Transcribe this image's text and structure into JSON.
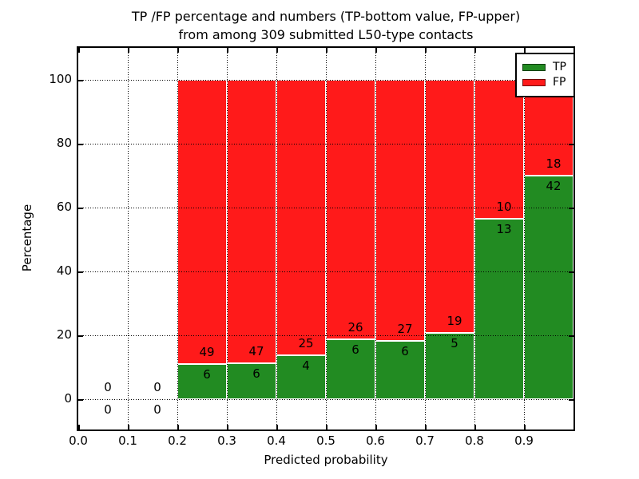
{
  "chart_data": {
    "type": "bar",
    "stacked": true,
    "title_line1": "TP /FP percentage and numbers (TP-bottom value, FP-upper)",
    "title_line2": "from among 309 submitted L50-type contacts",
    "xlabel": "Predicted probability",
    "ylabel": "Percentage",
    "total_contacts": 309,
    "xlim": [
      0.0,
      1.0
    ],
    "ylim": [
      -9.5,
      110
    ],
    "x_ticks": [
      "0.0",
      "0.1",
      "0.2",
      "0.3",
      "0.4",
      "0.5",
      "0.6",
      "0.7",
      "0.8",
      "0.9"
    ],
    "y_ticks": [
      "0",
      "20",
      "40",
      "60",
      "80",
      "100"
    ],
    "grid_style": "dotted",
    "colors": {
      "tp": "#228b22",
      "fp": "#ff1a1a",
      "bar_edge": "#ffffff"
    },
    "legend": {
      "position": "upper right",
      "entries": [
        {
          "label": "TP",
          "color": "#228b22"
        },
        {
          "label": "FP",
          "color": "#ff1a1a"
        }
      ]
    },
    "bins": [
      {
        "x_start": 0.0,
        "x_end": 0.1,
        "tp_count": 0,
        "fp_count": 0,
        "tp_pct": 0,
        "fp_pct": 0,
        "bar": false
      },
      {
        "x_start": 0.1,
        "x_end": 0.2,
        "tp_count": 0,
        "fp_count": 0,
        "tp_pct": 0,
        "fp_pct": 0,
        "bar": false
      },
      {
        "x_start": 0.2,
        "x_end": 0.3,
        "tp_count": 6,
        "fp_count": 49,
        "tp_pct": 10.91,
        "fp_pct": 89.09,
        "bar": true
      },
      {
        "x_start": 0.3,
        "x_end": 0.4,
        "tp_count": 6,
        "fp_count": 47,
        "tp_pct": 11.32,
        "fp_pct": 88.68,
        "bar": true
      },
      {
        "x_start": 0.4,
        "x_end": 0.5,
        "tp_count": 4,
        "fp_count": 25,
        "tp_pct": 13.79,
        "fp_pct": 86.21,
        "bar": true
      },
      {
        "x_start": 0.5,
        "x_end": 0.6,
        "tp_count": 6,
        "fp_count": 26,
        "tp_pct": 18.75,
        "fp_pct": 81.25,
        "bar": true
      },
      {
        "x_start": 0.6,
        "x_end": 0.7,
        "tp_count": 6,
        "fp_count": 27,
        "tp_pct": 18.18,
        "fp_pct": 81.82,
        "bar": true
      },
      {
        "x_start": 0.7,
        "x_end": 0.8,
        "tp_count": 5,
        "fp_count": 19,
        "tp_pct": 20.83,
        "fp_pct": 79.17,
        "bar": true
      },
      {
        "x_start": 0.8,
        "x_end": 0.9,
        "tp_count": 13,
        "fp_count": 10,
        "tp_pct": 56.52,
        "fp_pct": 43.48,
        "bar": true
      },
      {
        "x_start": 0.9,
        "x_end": 1.0,
        "tp_count": 42,
        "fp_count": 18,
        "tp_pct": 70.0,
        "fp_pct": 30.0,
        "bar": true
      }
    ]
  }
}
